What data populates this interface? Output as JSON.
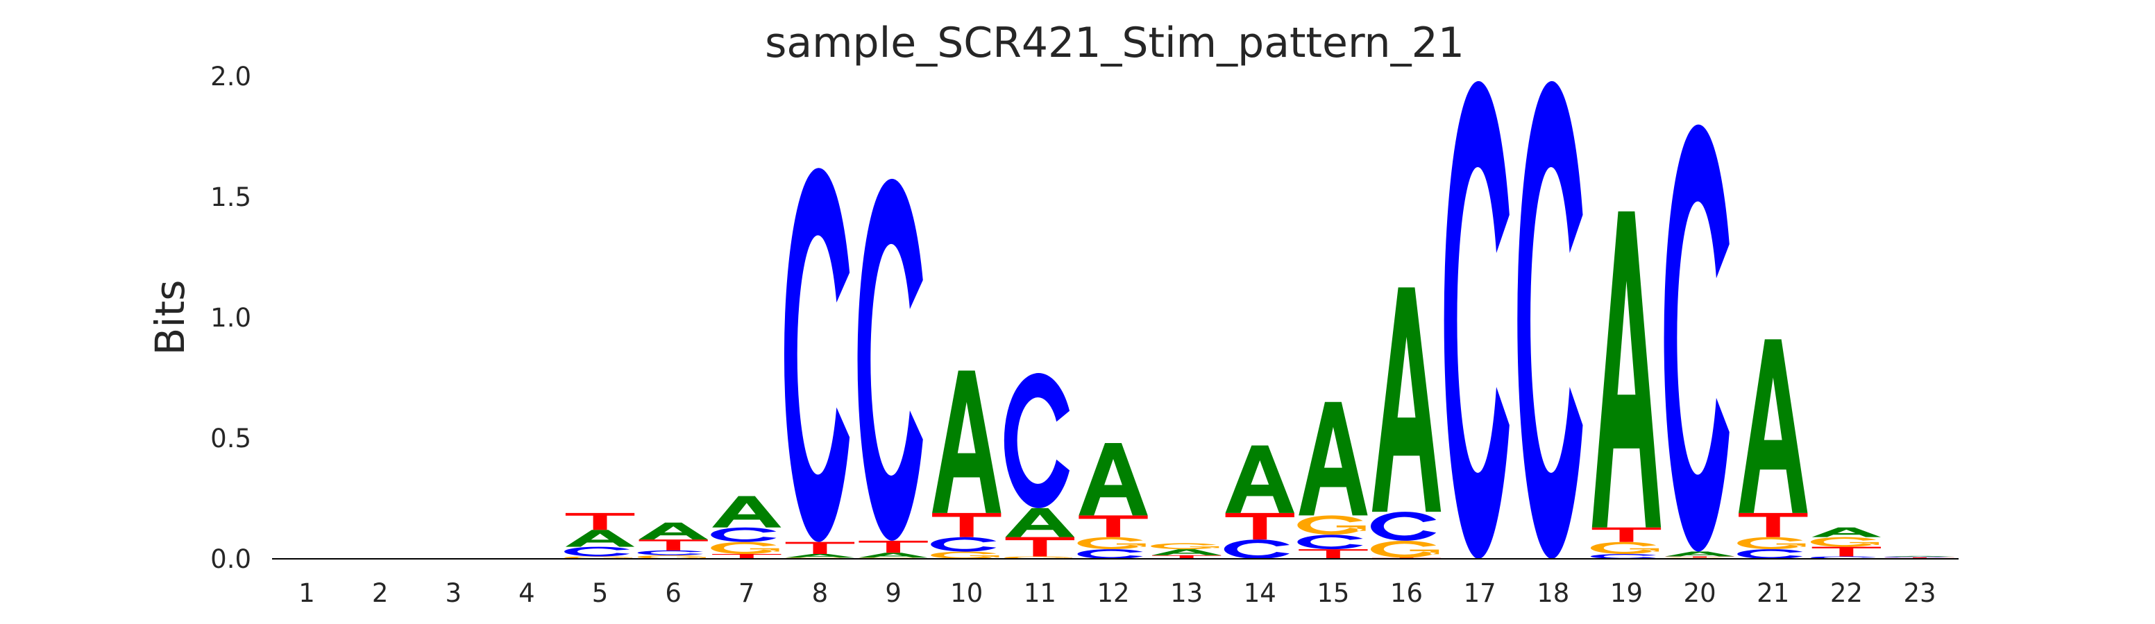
{
  "chart_data": {
    "type": "sequence_logo",
    "title": "sample_SCR421_Stim_pattern_21",
    "xlabel": "",
    "ylabel": "Bits",
    "ylim": [
      0,
      2.0
    ],
    "yticks": [
      "0.0",
      "0.5",
      "1.0",
      "1.5",
      "2.0"
    ],
    "ytick_values": [
      0,
      0.5,
      1.0,
      1.5,
      2.0
    ],
    "categories": [
      "1",
      "2",
      "3",
      "4",
      "5",
      "6",
      "7",
      "8",
      "9",
      "10",
      "11",
      "12",
      "13",
      "14",
      "15",
      "16",
      "17",
      "18",
      "19",
      "20",
      "21",
      "22",
      "23"
    ],
    "colors": {
      "A": "#008000",
      "C": "#0000ff",
      "G": "#ffa500",
      "T": "#ff0000"
    },
    "stacks": [
      [],
      [],
      [],
      [],
      [
        [
          "G",
          0.01
        ],
        [
          "C",
          0.04
        ],
        [
          "A",
          0.07
        ],
        [
          "T",
          0.07
        ]
      ],
      [
        [
          "G",
          0.015
        ],
        [
          "C",
          0.02
        ],
        [
          "T",
          0.045
        ],
        [
          "A",
          0.07
        ]
      ],
      [
        [
          "T",
          0.02
        ],
        [
          "G",
          0.05
        ],
        [
          "C",
          0.06
        ],
        [
          "A",
          0.13
        ]
      ],
      [
        [
          "G",
          0.005
        ],
        [
          "A",
          0.015
        ],
        [
          "T",
          0.05
        ],
        [
          "C",
          1.55
        ]
      ],
      [
        [
          "G",
          0.005
        ],
        [
          "A",
          0.02
        ],
        [
          "T",
          0.05
        ],
        [
          "C",
          1.5
        ]
      ],
      [
        [
          "G",
          0.03
        ],
        [
          "C",
          0.06
        ],
        [
          "T",
          0.1
        ],
        [
          "A",
          0.59
        ]
      ],
      [
        [
          "G",
          0.01
        ],
        [
          "T",
          0.08
        ],
        [
          "A",
          0.12
        ],
        [
          "C",
          0.56
        ]
      ],
      [
        [
          "C",
          0.04
        ],
        [
          "G",
          0.05
        ],
        [
          "T",
          0.09
        ],
        [
          "A",
          0.3
        ]
      ],
      [
        [
          "T",
          0.015
        ],
        [
          "A",
          0.025
        ],
        [
          "G",
          0.025
        ]
      ],
      [
        [
          "C",
          0.08
        ],
        [
          "T",
          0.11
        ],
        [
          "A",
          0.28
        ]
      ],
      [
        [
          "T",
          0.04
        ],
        [
          "C",
          0.06
        ],
        [
          "G",
          0.08
        ],
        [
          "A",
          0.47
        ]
      ],
      [
        [
          "T",
          0.005
        ],
        [
          "G",
          0.07
        ],
        [
          "C",
          0.12
        ],
        [
          "A",
          0.93
        ]
      ],
      [
        [
          "C",
          1.98
        ]
      ],
      [
        [
          "C",
          1.98
        ]
      ],
      [
        [
          "C",
          0.02
        ],
        [
          "G",
          0.05
        ],
        [
          "T",
          0.06
        ],
        [
          "A",
          1.31
        ]
      ],
      [
        [
          "G",
          0.005
        ],
        [
          "T",
          0.005
        ],
        [
          "A",
          0.02
        ],
        [
          "C",
          1.77
        ]
      ],
      [
        [
          "C",
          0.04
        ],
        [
          "G",
          0.05
        ],
        [
          "T",
          0.1
        ],
        [
          "A",
          0.72
        ]
      ],
      [
        [
          "C",
          0.01
        ],
        [
          "T",
          0.04
        ],
        [
          "G",
          0.04
        ],
        [
          "A",
          0.04
        ]
      ],
      [
        [
          "G",
          0.003
        ],
        [
          "T",
          0.003
        ],
        [
          "C",
          0.003
        ],
        [
          "A",
          0.003
        ]
      ]
    ]
  }
}
